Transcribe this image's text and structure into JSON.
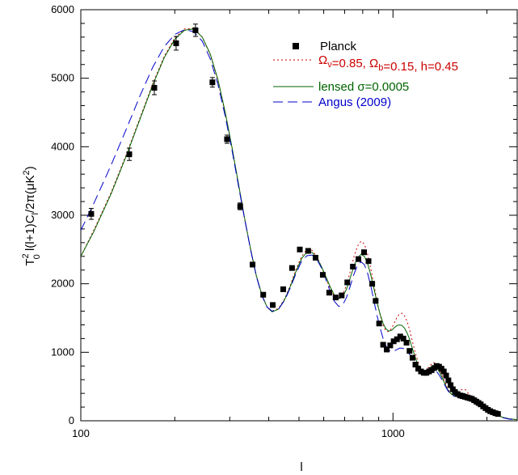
{
  "chart_data": {
    "type": "line",
    "xlabel": "l",
    "ylabel_parts": [
      "T",
      "2",
      "0",
      " l(l+1)C",
      "l",
      "/2π(μK",
      "2",
      ")"
    ],
    "xscale": "log",
    "xlim": [
      100,
      2500
    ],
    "ylim": [
      0,
      6000
    ],
    "x_tick_labels": [
      {
        "value": 100,
        "label": "100"
      },
      {
        "value": 1000,
        "label": "1000"
      }
    ],
    "y_tick_labels": [
      {
        "value": 0,
        "label": "0"
      },
      {
        "value": 1000,
        "label": "1000"
      },
      {
        "value": 2000,
        "label": "2000"
      },
      {
        "value": 3000,
        "label": "3000"
      },
      {
        "value": 4000,
        "label": "4000"
      },
      {
        "value": 5000,
        "label": "5000"
      },
      {
        "value": 6000,
        "label": "6000"
      }
    ],
    "legend": {
      "placement": "top-right",
      "entries": [
        {
          "key": "planck",
          "parts": [
            [
              "Planck",
              null
            ]
          ],
          "color": "#000000",
          "style": "marker"
        },
        {
          "key": "mond",
          "parts": [
            [
              "Ω",
              null
            ],
            [
              "ν",
              "sub"
            ],
            [
              "=0.85, ",
              null
            ],
            [
              "Ω",
              null
            ],
            [
              "b",
              "sub"
            ],
            [
              "=0.15, h=0.45",
              null
            ]
          ],
          "color": "#cc0000",
          "style": "dotted"
        },
        {
          "key": "lensed",
          "parts": [
            [
              "lensed σ=0.0005",
              null
            ]
          ],
          "color": "#006400",
          "style": "solid"
        },
        {
          "key": "angus",
          "parts": [
            [
              "Angus (2009)",
              null
            ]
          ],
          "color": "#0000cc",
          "style": "dashed"
        }
      ]
    },
    "series": [
      {
        "key": "planck",
        "type": "scatter_errorbar",
        "color": "#000000",
        "points": [
          [
            108,
            3020,
            80
          ],
          [
            143,
            3890,
            90
          ],
          [
            172,
            4860,
            100
          ],
          [
            202,
            5510,
            100
          ],
          [
            233,
            5700,
            90
          ],
          [
            264,
            4940,
            70
          ],
          [
            294,
            4110,
            60
          ],
          [
            324,
            3130,
            50
          ],
          [
            355,
            2280,
            40
          ],
          [
            384,
            1840,
            35
          ],
          [
            412,
            1690,
            30
          ],
          [
            445,
            1920,
            30
          ],
          [
            475,
            2230,
            30
          ],
          [
            503,
            2500,
            30
          ],
          [
            535,
            2480,
            30
          ],
          [
            565,
            2380,
            30
          ],
          [
            596,
            2130,
            30
          ],
          [
            625,
            1870,
            30
          ],
          [
            655,
            1800,
            30
          ],
          [
            685,
            1830,
            30
          ],
          [
            714,
            2020,
            30
          ],
          [
            744,
            2250,
            30
          ],
          [
            775,
            2360,
            30
          ],
          [
            808,
            2460,
            30
          ],
          [
            835,
            2330,
            30
          ],
          [
            858,
            2000,
            30
          ],
          [
            880,
            1750,
            30
          ],
          [
            903,
            1420,
            30
          ],
          [
            930,
            1110,
            30
          ],
          [
            955,
            1040,
            30
          ],
          [
            980,
            1100,
            30
          ],
          [
            1005,
            1160,
            30
          ],
          [
            1030,
            1190,
            30
          ],
          [
            1055,
            1230,
            30
          ],
          [
            1080,
            1200,
            30
          ],
          [
            1105,
            1140,
            30
          ],
          [
            1130,
            1020,
            30
          ],
          [
            1155,
            920,
            30
          ],
          [
            1180,
            820,
            30
          ],
          [
            1205,
            760,
            30
          ],
          [
            1230,
            720,
            30
          ],
          [
            1255,
            700,
            30
          ],
          [
            1280,
            700,
            30
          ],
          [
            1305,
            720,
            30
          ],
          [
            1330,
            740,
            30
          ],
          [
            1355,
            770,
            30
          ],
          [
            1380,
            800,
            30
          ],
          [
            1405,
            790,
            30
          ],
          [
            1430,
            760,
            30
          ],
          [
            1455,
            720,
            30
          ],
          [
            1480,
            660,
            30
          ],
          [
            1505,
            590,
            30
          ],
          [
            1530,
            520,
            30
          ],
          [
            1555,
            460,
            30
          ],
          [
            1580,
            420,
            30
          ],
          [
            1610,
            390,
            30
          ],
          [
            1640,
            370,
            30
          ],
          [
            1670,
            360,
            30
          ],
          [
            1700,
            350,
            30
          ],
          [
            1730,
            340,
            30
          ],
          [
            1760,
            330,
            30
          ],
          [
            1790,
            320,
            30
          ],
          [
            1820,
            300,
            30
          ],
          [
            1850,
            280,
            30
          ],
          [
            1880,
            260,
            30
          ],
          [
            1910,
            240,
            30
          ],
          [
            1945,
            210,
            30
          ],
          [
            1980,
            185,
            30
          ],
          [
            2015,
            160,
            30
          ],
          [
            2050,
            140,
            30
          ],
          [
            2090,
            125,
            30
          ],
          [
            2130,
            110,
            30
          ],
          [
            2170,
            100,
            30
          ]
        ]
      },
      {
        "key": "mond",
        "type": "line",
        "color": "#cc0000",
        "dash": "2,3",
        "x": [
          100,
          110,
          125,
          140,
          155,
          170,
          185,
          200,
          215,
          230,
          245,
          260,
          275,
          290,
          305,
          320,
          335,
          350,
          365,
          380,
          395,
          410,
          430,
          450,
          470,
          490,
          510,
          530,
          550,
          570,
          590,
          610,
          630,
          650,
          670,
          690,
          710,
          730,
          750,
          770,
          790,
          810,
          830,
          850,
          870,
          890,
          910,
          930,
          950,
          970,
          990,
          1010,
          1030,
          1050,
          1070,
          1090,
          1110,
          1130,
          1150,
          1170,
          1190,
          1210,
          1230,
          1250,
          1270,
          1290,
          1310,
          1330,
          1350,
          1370,
          1390,
          1410,
          1430,
          1450,
          1470,
          1490,
          1510,
          1530,
          1550,
          1570,
          1590,
          1610,
          1630,
          1650,
          1670,
          1690,
          1710,
          1730,
          1750,
          1770,
          1790,
          1810,
          1830,
          1850,
          1870,
          1890,
          1910,
          1930,
          1950,
          1970,
          1990,
          2010,
          2040,
          2070,
          2100,
          2150,
          2200,
          2250,
          2300,
          2350,
          2400,
          2450,
          2500
        ],
        "y": [
          2400,
          2780,
          3330,
          3890,
          4430,
          4920,
          5320,
          5590,
          5720,
          5730,
          5600,
          5340,
          4960,
          4490,
          3980,
          3450,
          2940,
          2490,
          2110,
          1830,
          1660,
          1600,
          1640,
          1780,
          1990,
          2220,
          2400,
          2500,
          2490,
          2400,
          2250,
          2080,
          1920,
          1810,
          1790,
          1840,
          1980,
          2180,
          2390,
          2550,
          2620,
          2580,
          2430,
          2210,
          1970,
          1740,
          1540,
          1390,
          1310,
          1300,
          1350,
          1430,
          1510,
          1560,
          1570,
          1530,
          1450,
          1330,
          1190,
          1050,
          930,
          830,
          760,
          730,
          730,
          760,
          800,
          830,
          850,
          840,
          810,
          760,
          690,
          620,
          550,
          490,
          440,
          400,
          380,
          380,
          390,
          410,
          430,
          450,
          460,
          460,
          450,
          420,
          390,
          350,
          310,
          280,
          260,
          250,
          250,
          250,
          250,
          245,
          235,
          220,
          200,
          180,
          155,
          130,
          110,
          85,
          65,
          50,
          40,
          30,
          25,
          20,
          15
        ]
      },
      {
        "key": "lensed",
        "type": "line",
        "color": "#006400",
        "dash": "",
        "x": [
          100,
          110,
          125,
          140,
          155,
          170,
          185,
          200,
          215,
          230,
          245,
          260,
          275,
          290,
          305,
          320,
          335,
          350,
          365,
          380,
          395,
          410,
          430,
          450,
          470,
          490,
          510,
          530,
          550,
          570,
          590,
          610,
          630,
          650,
          670,
          690,
          710,
          730,
          750,
          770,
          790,
          810,
          830,
          850,
          870,
          890,
          910,
          930,
          950,
          970,
          990,
          1010,
          1030,
          1050,
          1070,
          1090,
          1110,
          1130,
          1150,
          1170,
          1190,
          1210,
          1230,
          1250,
          1270,
          1290,
          1310,
          1330,
          1350,
          1370,
          1390,
          1410,
          1430,
          1450,
          1470,
          1490,
          1510,
          1530,
          1550,
          1570,
          1590,
          1610,
          1630,
          1650,
          1670,
          1690,
          1710,
          1730,
          1750,
          1770,
          1790,
          1810,
          1830,
          1850,
          1870,
          1890,
          1910,
          1930,
          1950,
          1970,
          1990,
          2010,
          2040,
          2070,
          2100,
          2150,
          2200,
          2250,
          2300,
          2350,
          2400,
          2450,
          2500
        ],
        "y": [
          2400,
          2760,
          3310,
          3870,
          4410,
          4900,
          5300,
          5570,
          5700,
          5720,
          5600,
          5350,
          4980,
          4510,
          3990,
          3460,
          2950,
          2500,
          2120,
          1840,
          1660,
          1590,
          1630,
          1770,
          1970,
          2190,
          2370,
          2460,
          2460,
          2380,
          2250,
          2100,
          1950,
          1830,
          1780,
          1810,
          1920,
          2090,
          2260,
          2380,
          2430,
          2400,
          2290,
          2120,
          1920,
          1720,
          1550,
          1420,
          1340,
          1310,
          1320,
          1360,
          1390,
          1400,
          1390,
          1350,
          1280,
          1190,
          1080,
          970,
          870,
          790,
          740,
          720,
          720,
          740,
          770,
          790,
          800,
          790,
          760,
          710,
          650,
          590,
          530,
          470,
          430,
          400,
          380,
          370,
          370,
          380,
          390,
          400,
          400,
          400,
          390,
          370,
          350,
          320,
          290,
          270,
          250,
          240,
          240,
          240,
          235,
          225,
          215,
          200,
          185,
          165,
          145,
          125,
          105,
          85,
          65,
          50,
          40,
          30,
          25,
          20,
          15
        ]
      },
      {
        "key": "angus",
        "type": "line",
        "color": "#0000cc",
        "dash": "12,6",
        "x": [
          100,
          110,
          125,
          140,
          155,
          170,
          185,
          200,
          215,
          230,
          245,
          260,
          275,
          290,
          305,
          320,
          335,
          350,
          365,
          380,
          395,
          410,
          430,
          450,
          470,
          490,
          510,
          530,
          550,
          570,
          590,
          610,
          630,
          650,
          670,
          690,
          710,
          730,
          750,
          770,
          790,
          810,
          830,
          850,
          870,
          890,
          910,
          930,
          950,
          970,
          990,
          1010,
          1030,
          1050,
          1070,
          1090,
          1110,
          1130,
          1150,
          1170,
          1190,
          1210,
          1230,
          1250,
          1270,
          1290,
          1310,
          1330,
          1350,
          1370,
          1390,
          1410,
          1430,
          1450,
          1470,
          1490,
          1510,
          1530,
          1550,
          1570,
          1590,
          1610,
          1630,
          1650,
          1670,
          1690,
          1710,
          1730,
          1750,
          1770,
          1790,
          1810,
          1830,
          1850,
          1870,
          1890,
          1910,
          1930,
          1950,
          1970,
          1990,
          2010,
          2040,
          2070,
          2100,
          2150,
          2200,
          2250,
          2300,
          2350,
          2400,
          2450,
          2500
        ],
        "y": [
          2780,
          3170,
          3730,
          4260,
          4750,
          5160,
          5460,
          5640,
          5710,
          5680,
          5540,
          5280,
          4910,
          4450,
          3950,
          3430,
          2940,
          2490,
          2110,
          1830,
          1660,
          1600,
          1630,
          1760,
          1950,
          2160,
          2330,
          2410,
          2420,
          2360,
          2230,
          2060,
          1880,
          1740,
          1670,
          1690,
          1800,
          1970,
          2140,
          2270,
          2320,
          2280,
          2150,
          1960,
          1740,
          1530,
          1350,
          1200,
          1090,
          1030,
          1010,
          1020,
          1040,
          1060,
          1060,
          1050,
          1020,
          970,
          910,
          850,
          790,
          730,
          690,
          670,
          670,
          690,
          710,
          730,
          740,
          730,
          700,
          660,
          610,
          560,
          510,
          460,
          420,
          390,
          370,
          360,
          360,
          370,
          380,
          390,
          390,
          380,
          370,
          350,
          330,
          300,
          280,
          260,
          240,
          230,
          230,
          230,
          225,
          215,
          205,
          190,
          175,
          155,
          135,
          115,
          95,
          75,
          60,
          45,
          35,
          25,
          20,
          15,
          10
        ]
      }
    ]
  }
}
